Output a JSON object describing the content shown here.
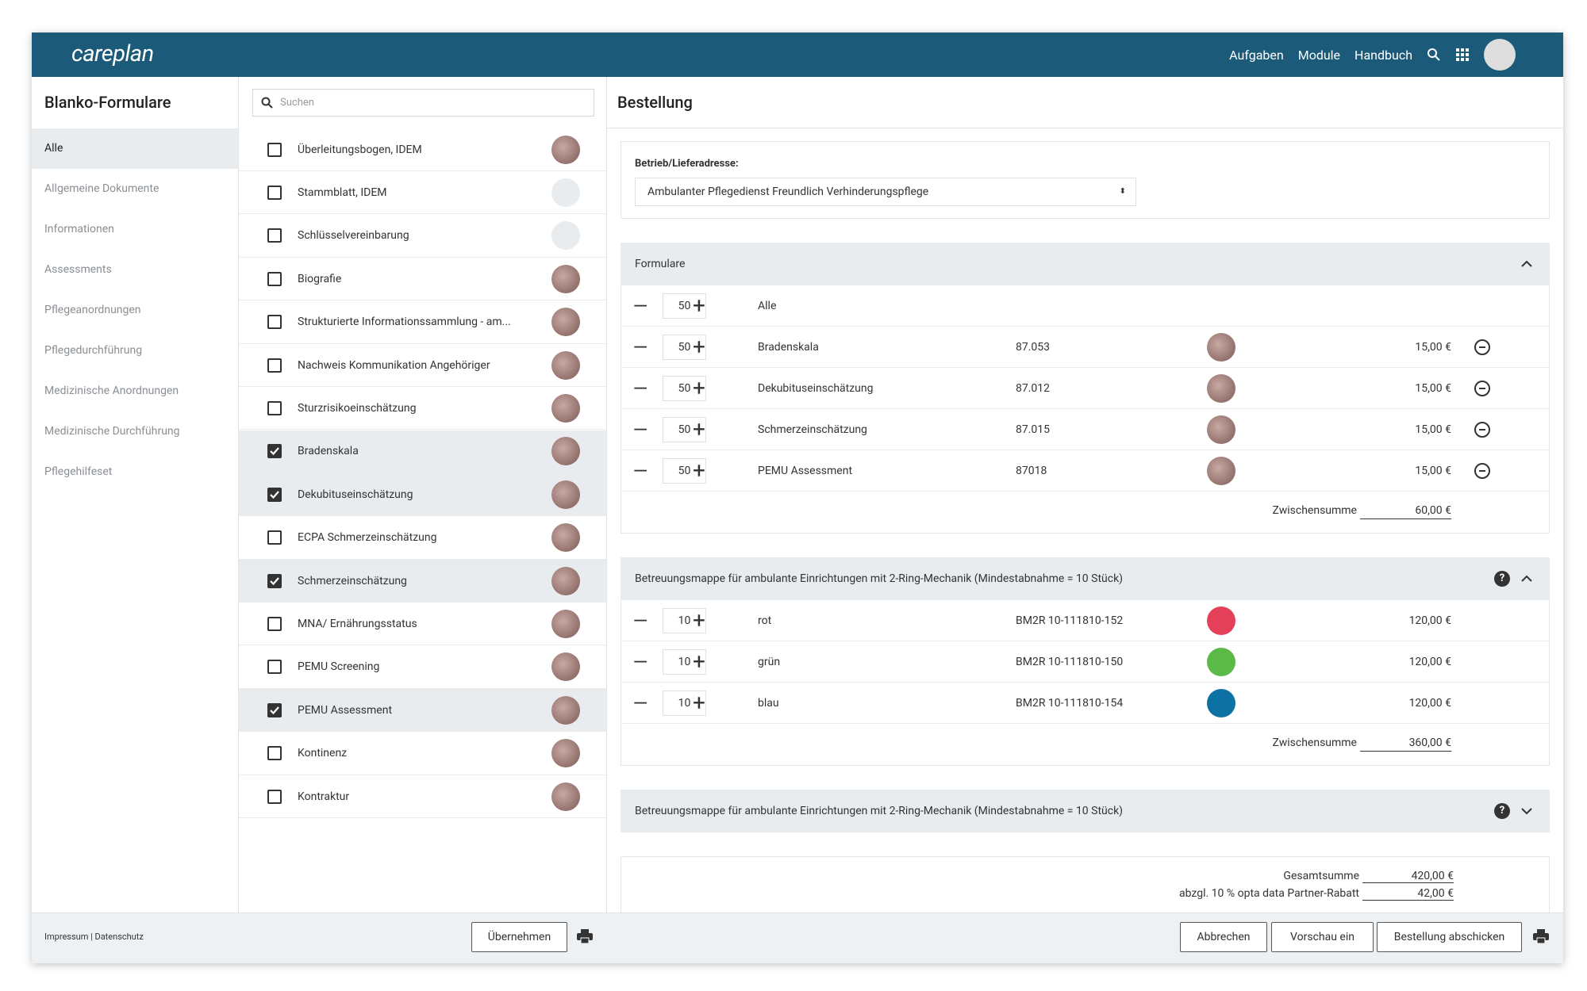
{
  "header": {
    "logo": "careplan",
    "nav": [
      "Aufgaben",
      "Module",
      "Handbuch"
    ]
  },
  "sidebar": {
    "title": "Blanko-Formulare",
    "items": [
      "Alle",
      "Allgemeine Dokumente",
      "Informationen",
      "Assessments",
      "Pflegeanordnungen",
      "Pflegedurchführung",
      "Medizinische Anordnungen",
      "Medizinische Durchführung",
      "Pflegehilfeset"
    ],
    "footer": "Impressum | Datenschutz"
  },
  "list": {
    "search_placeholder": "Suchen",
    "items": [
      {
        "label": "Überleitungsbogen, IDEM",
        "checked": false
      },
      {
        "label": "Stammblatt, IDEM",
        "checked": false
      },
      {
        "label": "Schlüsselvereinbarung",
        "checked": false
      },
      {
        "label": "Biografie",
        "checked": false
      },
      {
        "label": "Strukturierte Informationssammlung - am...",
        "checked": false
      },
      {
        "label": "Nachweis Kommunikation Angehöriger",
        "checked": false
      },
      {
        "label": "Sturzrisikoeinschätzung",
        "checked": false
      },
      {
        "label": "Bradenskala",
        "checked": true
      },
      {
        "label": "Dekubituseinschätzung",
        "checked": true
      },
      {
        "label": "ECPA Schmerzeinschätzung",
        "checked": false
      },
      {
        "label": "Schmerzeinschätzung",
        "checked": true
      },
      {
        "label": "MNA/ Ernährungsstatus",
        "checked": false
      },
      {
        "label": "PEMU Screening",
        "checked": false
      },
      {
        "label": "PEMU Assessment",
        "checked": true
      },
      {
        "label": "Kontinenz",
        "checked": false
      },
      {
        "label": "Kontraktur",
        "checked": false
      }
    ],
    "button": "Übernehmen"
  },
  "order": {
    "title": "Bestellung",
    "address_label": "Betrieb/Lieferadresse:",
    "address": "Ambulanter Pflegedienst Freundlich Verhinderungspflege",
    "sections": [
      {
        "title": "Formulare",
        "open": true,
        "help": false,
        "rows": [
          {
            "qty": "50",
            "name": "Alle"
          },
          {
            "qty": "50",
            "name": "Bradenskala",
            "code": "87.053",
            "price": "15,00 €",
            "removable": true
          },
          {
            "qty": "50",
            "name": "Dekubituseinschätzung",
            "code": "87.012",
            "price": "15,00 €",
            "removable": true
          },
          {
            "qty": "50",
            "name": "Schmerzeinschätzung",
            "code": "87.015",
            "price": "15,00 €",
            "removable": true
          },
          {
            "qty": "50",
            "name": "PEMU Assessment",
            "code": "87018",
            "price": "15,00 €",
            "removable": true
          }
        ],
        "subtotal_label": "Zwischensumme",
        "subtotal": "60,00 €"
      },
      {
        "title": "Betreuungsmappe für ambulante Einrichtungen mit 2-Ring-Mechanik (Mindestabnahme = 10 Stück)",
        "open": true,
        "help": true,
        "rows": [
          {
            "qty": "10",
            "name": "rot",
            "code": "BM2R 10-111810-152",
            "price": "120,00 €",
            "color": "#e5405a"
          },
          {
            "qty": "10",
            "name": "grün",
            "code": "BM2R 10-111810-150",
            "price": "120,00 €",
            "color": "#5bb947"
          },
          {
            "qty": "10",
            "name": "blau",
            "code": "BM2R 10-111810-154",
            "price": "120,00 €",
            "color": "#0d72a3"
          }
        ],
        "subtotal_label": "Zwischensumme",
        "subtotal": "360,00 €"
      },
      {
        "title": "Betreuungsmappe für ambulante Einrichtungen mit 2-Ring-Mechanik (Mindestabnahme = 10 Stück)",
        "open": false,
        "help": true,
        "rows": []
      }
    ],
    "totals": [
      {
        "label": "Gesamtsumme",
        "value": "420,00 €"
      },
      {
        "label": "abzgl. 10 % opta data Partner-Rabatt",
        "value": "42,00 €"
      }
    ],
    "buttons": [
      "Abbrechen",
      "Vorschau ein",
      "Bestellung abschicken"
    ]
  }
}
